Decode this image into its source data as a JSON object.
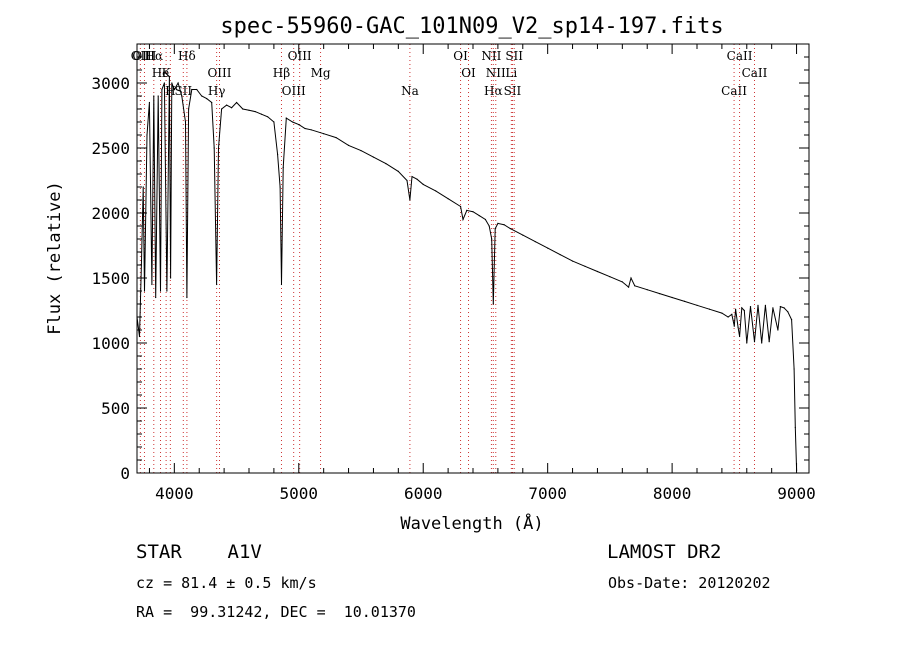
{
  "chart_data": {
    "type": "line",
    "title": "spec-55960-GAC_101N09_V2_sp14-197.fits",
    "xlabel": "Wavelength (Å)",
    "ylabel": "Flux (relative)",
    "xlim": [
      3700,
      9100
    ],
    "ylim": [
      0,
      3300
    ],
    "xticks": [
      4000,
      5000,
      6000,
      7000,
      8000,
      9000
    ],
    "yticks": [
      0,
      500,
      1000,
      1500,
      2000,
      2500,
      3000
    ],
    "grid": false,
    "series": [
      {
        "x": [
          3700,
          3720,
          3735,
          3750,
          3760,
          3780,
          3800,
          3820,
          3835,
          3850,
          3870,
          3889,
          3900,
          3920,
          3940,
          3960,
          3970,
          3980,
          4000,
          4030,
          4060,
          4090,
          4101,
          4115,
          4140,
          4180,
          4220,
          4260,
          4300,
          4320,
          4340,
          4355,
          4380,
          4420,
          4460,
          4500,
          4550,
          4600,
          4650,
          4700,
          4750,
          4800,
          4830,
          4850,
          4861,
          4875,
          4900,
          4950,
          5000,
          5050,
          5100,
          5200,
          5300,
          5400,
          5500,
          5600,
          5700,
          5800,
          5870,
          5893,
          5910,
          5950,
          6000,
          6100,
          6200,
          6300,
          6320,
          6350,
          6400,
          6450,
          6500,
          6530,
          6550,
          6563,
          6578,
          6600,
          6650,
          6700,
          6800,
          6900,
          7000,
          7100,
          7200,
          7300,
          7400,
          7500,
          7600,
          7650,
          7670,
          7700,
          7800,
          7900,
          8000,
          8100,
          8200,
          8300,
          8400,
          8450,
          8480,
          8500,
          8510,
          8530,
          8542,
          8560,
          8580,
          8600,
          8630,
          8662,
          8690,
          8720,
          8750,
          8780,
          8810,
          8850,
          8870,
          8900,
          8930,
          8960,
          8980,
          8990,
          9000
        ],
        "y": [
          1200,
          1050,
          1600,
          2200,
          1400,
          2600,
          2850,
          1450,
          2900,
          1350,
          2900,
          1400,
          2950,
          3000,
          1400,
          3050,
          1500,
          3000,
          2950,
          3000,
          2900,
          2700,
          1350,
          2800,
          2950,
          2950,
          2900,
          2880,
          2850,
          2500,
          1450,
          2500,
          2800,
          2830,
          2810,
          2850,
          2800,
          2790,
          2780,
          2760,
          2740,
          2700,
          2450,
          2200,
          1450,
          2350,
          2730,
          2700,
          2680,
          2650,
          2640,
          2610,
          2580,
          2520,
          2480,
          2430,
          2380,
          2320,
          2250,
          2100,
          2280,
          2260,
          2220,
          2170,
          2110,
          2050,
          1950,
          2020,
          2010,
          1980,
          1950,
          1900,
          1800,
          1300,
          1880,
          1920,
          1910,
          1880,
          1830,
          1780,
          1730,
          1680,
          1630,
          1590,
          1550,
          1510,
          1470,
          1430,
          1500,
          1440,
          1410,
          1380,
          1350,
          1320,
          1290,
          1260,
          1230,
          1200,
          1220,
          1130,
          1260,
          1120,
          1050,
          1270,
          1250,
          1000,
          1280,
          1010,
          1290,
          1000,
          1290,
          1010,
          1270,
          1100,
          1280,
          1270,
          1240,
          1180,
          800,
          350,
          20
        ]
      }
    ],
    "line_markers": [
      {
        "label": "Hα",
        "x": 3835
      },
      {
        "label": "K",
        "x": 3934
      },
      {
        "label": "H",
        "x": 3968
      },
      {
        "label": "Hδ",
        "x": 4101
      },
      {
        "label": "OIII",
        "x": 4363
      },
      {
        "label": "Hγ",
        "x": 4340
      },
      {
        "label": "OII",
        "x": 3727
      },
      {
        "label": "He",
        "x": 3889
      },
      {
        "label": "SII",
        "x": 4072
      },
      {
        "label": "OIII",
        "x": 3760
      },
      {
        "label": "Hβ",
        "x": 4861
      },
      {
        "label": "OIII",
        "x": 4959
      },
      {
        "label": "OIII",
        "x": 5007
      },
      {
        "label": "Mg",
        "x": 5175
      },
      {
        "label": "Na",
        "x": 5893
      },
      {
        "label": "OI",
        "x": 6300
      },
      {
        "label": "OI",
        "x": 6364
      },
      {
        "label": "Hα",
        "x": 6563
      },
      {
        "label": "NII",
        "x": 6548
      },
      {
        "label": "NII",
        "x": 6583
      },
      {
        "label": "SII",
        "x": 6717
      },
      {
        "label": "SII",
        "x": 6731
      },
      {
        "label": "Li",
        "x": 6708
      },
      {
        "label": "CaII",
        "x": 8498
      },
      {
        "label": "CaII",
        "x": 8542
      },
      {
        "label": "CaII",
        "x": 8662
      }
    ]
  },
  "info": {
    "star_line": "STAR    A1V",
    "survey": "LAMOST DR2",
    "cz": "cz = 81.4 ± 0.5 km/s",
    "obs_date": "Obs-Date: 20120202",
    "coords": "RA =  99.31242, DEC =  10.01370"
  }
}
